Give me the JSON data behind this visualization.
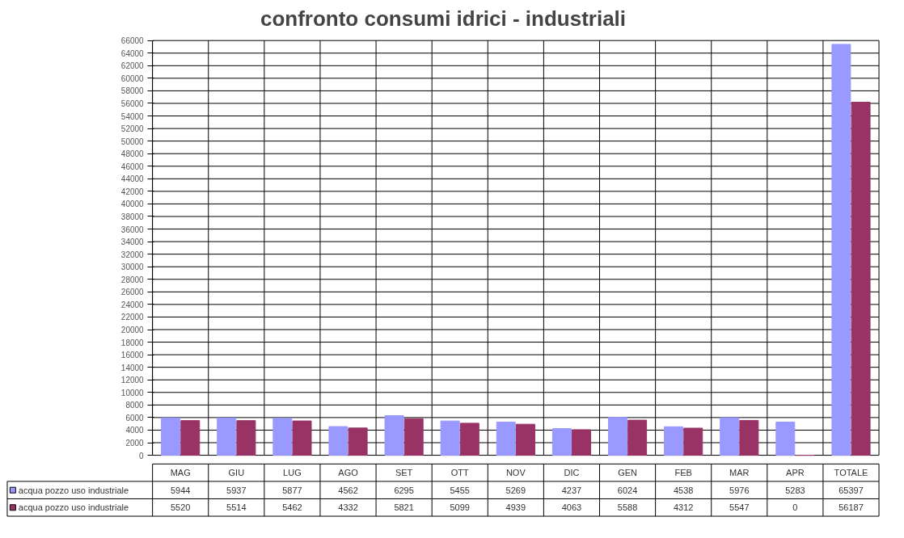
{
  "chart_data": {
    "type": "bar",
    "title": "confronto consumi idrici - industriali",
    "categories": [
      "MAG",
      "GIU",
      "LUG",
      "AGO",
      "SET",
      "OTT",
      "NOV",
      "DIC",
      "GEN",
      "FEB",
      "MAR",
      "APR",
      "TOTALE"
    ],
    "series": [
      {
        "name": "acqua pozzo uso industriale",
        "color": "#9999ff",
        "values": [
          5944,
          5937,
          5877,
          4562,
          6295,
          5455,
          5269,
          4237,
          6024,
          4538,
          5976,
          5283,
          65397
        ]
      },
      {
        "name": "acqua pozzo uso industriale",
        "color": "#993366",
        "values": [
          5520,
          5514,
          5462,
          4332,
          5821,
          5099,
          4939,
          4063,
          5588,
          4312,
          5547,
          0,
          56187
        ]
      }
    ],
    "ylim": [
      0,
      66000
    ],
    "yticks": [
      0,
      2000,
      4000,
      6000,
      8000,
      10000,
      12000,
      14000,
      16000,
      18000,
      20000,
      22000,
      24000,
      26000,
      28000,
      30000,
      32000,
      34000,
      36000,
      38000,
      40000,
      42000,
      44000,
      46000,
      48000,
      50000,
      52000,
      54000,
      56000,
      58000,
      60000,
      62000,
      64000,
      66000
    ],
    "grid": true,
    "data_labels": true,
    "legend": "bottom"
  }
}
